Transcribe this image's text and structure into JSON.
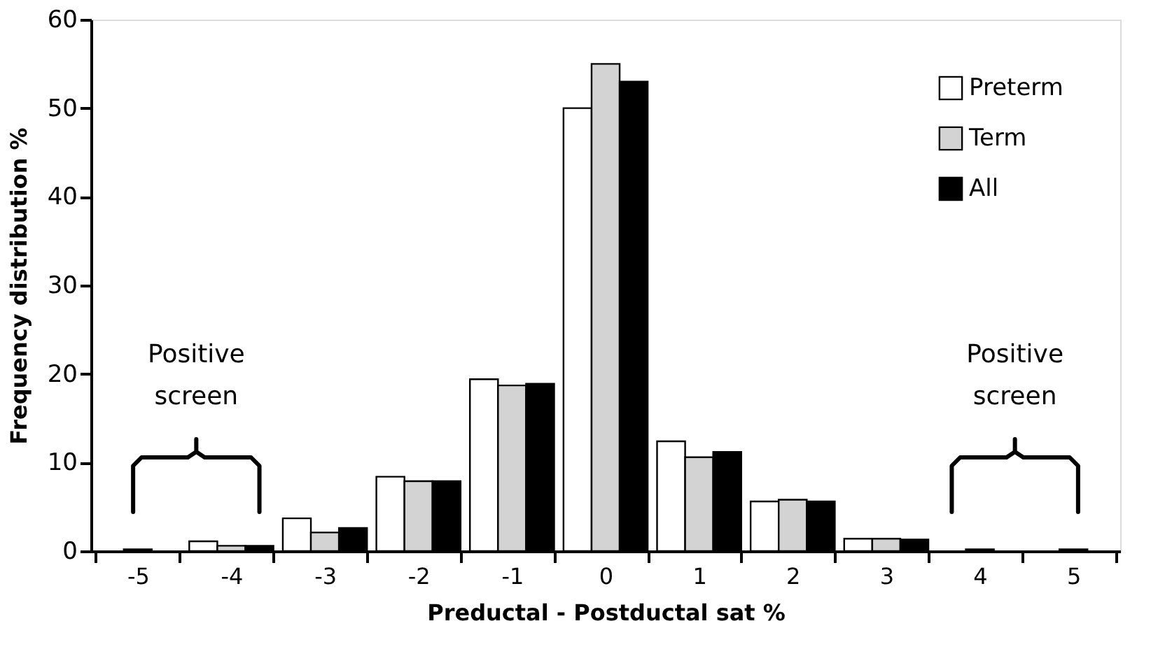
{
  "chart_data": {
    "type": "bar",
    "xlabel": "Preductal - Postductal sat %",
    "ylabel": "Frequency distribution %",
    "categories": [
      "-5",
      "-4",
      "-3",
      "-2",
      "-1",
      "0",
      "1",
      "2",
      "3",
      "4",
      "5"
    ],
    "series": [
      {
        "name": "Preterm",
        "color": "#ffffff",
        "values": [
          null,
          1.1,
          3.7,
          8.4,
          19.4,
          50,
          12.4,
          5.6,
          1.4,
          null,
          null
        ]
      },
      {
        "name": "Term",
        "color": "#d3d3d3",
        "values": [
          0.2,
          0.6,
          2.1,
          7.9,
          18.7,
          55,
          10.6,
          5.8,
          1.4,
          0.2,
          0.2
        ]
      },
      {
        "name": "All",
        "color": "#000000",
        "values": [
          null,
          0.6,
          2.6,
          7.9,
          18.9,
          53,
          11.2,
          5.6,
          1.3,
          null,
          null
        ]
      }
    ],
    "ylim": [
      0,
      60
    ],
    "yticks": [
      0,
      10,
      20,
      30,
      40,
      50,
      60
    ],
    "grid": false,
    "legend": "top right",
    "annotations": [
      "Positive screen",
      "Positive screen"
    ]
  }
}
